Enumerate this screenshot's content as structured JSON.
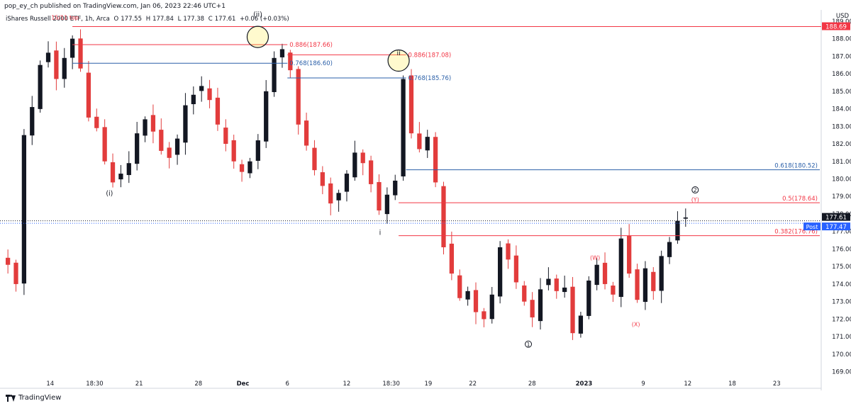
{
  "header": {
    "published": "pop_ey_ch published on TradingView.com, Jan 06, 2023 22:46 UTC+1",
    "symbol": "iShares Russell 2000 ETF, 1h, Arca",
    "o_label": "O",
    "o_value": "177.55",
    "h_label": "H",
    "h_value": "177.84",
    "l_label": "L",
    "l_value": "177.38",
    "c_label": "C",
    "c_value": "177.61",
    "change": "+0.06 (+0.03%)"
  },
  "footer": {
    "logo_text": "TradingView",
    "logo_icon": "tradingview-logo-icon"
  },
  "colors": {
    "up": "#131722",
    "down": "#e23c3c",
    "red_line": "#f23645",
    "blue_line": "#2a5fa8",
    "axis_text": "#131722"
  },
  "price_scale": {
    "currency": "USD",
    "ticks": [
      "189.00",
      "188.00",
      "187.00",
      "186.00",
      "185.00",
      "184.00",
      "183.00",
      "182.00",
      "181.00",
      "180.00",
      "179.00",
      "178.00",
      "177.00",
      "176.00",
      "175.00",
      "174.00",
      "173.00",
      "172.00",
      "171.00",
      "170.00",
      "169.00"
    ],
    "badges": [
      {
        "label": "188.69",
        "value": 188.69,
        "bg": "#f23645",
        "fg": "#ffffff"
      },
      {
        "label": "177.61",
        "value": 177.61,
        "bg": "#131722",
        "fg": "#ffffff"
      },
      {
        "label": "177.47",
        "value": 177.47,
        "bg": "#2962ff",
        "fg": "#ffffff",
        "tag": "Post"
      }
    ]
  },
  "time_scale": {
    "labels": [
      {
        "label": "14",
        "t": 6
      },
      {
        "label": "18:30",
        "t": 12
      },
      {
        "label": "21",
        "t": 18
      },
      {
        "label": "28",
        "t": 26
      },
      {
        "label": "Dec",
        "t": 32
      },
      {
        "label": "6",
        "t": 38
      },
      {
        "label": "12",
        "t": 46
      },
      {
        "label": "18:30",
        "t": 52
      },
      {
        "label": "19",
        "t": 57
      },
      {
        "label": "22",
        "t": 63
      },
      {
        "label": "28",
        "t": 71
      },
      {
        "label": "2023",
        "t": 78
      },
      {
        "label": "9",
        "t": 86
      },
      {
        "label": "12",
        "t": 92
      },
      {
        "label": "18",
        "t": 98
      },
      {
        "label": "23",
        "t": 104
      }
    ]
  },
  "chart_data": {
    "type": "candlestick",
    "title": "iShares Russell 2000 ETF, 1h, Arca",
    "xlabel": "",
    "ylabel": "",
    "ylim": [
      168.5,
      189.6
    ],
    "xlim": [
      0,
      110
    ],
    "grid": false,
    "x_note": "",
    "closes": [
      175.1,
      174.0,
      182.5,
      184.1,
      186.5,
      187.2,
      185.7,
      186.9,
      188.0,
      186.3,
      183.5,
      182.9,
      181.0,
      179.8,
      180.3,
      180.9,
      182.6,
      183.4,
      182.7,
      181.6,
      181.2,
      182.3,
      184.2,
      184.8,
      185.3,
      184.5,
      183.1,
      182.0,
      181.0,
      180.4,
      181.0,
      182.2,
      185.0,
      186.9,
      187.4,
      186.2,
      183.1,
      181.9,
      180.5,
      179.6,
      178.6,
      179.2,
      180.3,
      181.5,
      180.9,
      179.7,
      178.2,
      179.1,
      179.9,
      185.7,
      182.6,
      181.7,
      182.4,
      179.8,
      176.1,
      174.6,
      173.2,
      173.6,
      172.4,
      172.0,
      173.4,
      176.1,
      175.4,
      174.1,
      173.0,
      172.1,
      173.7,
      174.3,
      173.6,
      173.8,
      171.2,
      172.2,
      174.2,
      175.1,
      174.0,
      173.4,
      176.6,
      174.6,
      173.1,
      174.9,
      173.6,
      175.6,
      176.4,
      177.6,
      177.8
    ],
    "annotations": [
      {
        "text": "15/11 top",
        "t": 8.0,
        "price": 189.1,
        "color": "#f23645"
      },
      {
        "text": "(ii)",
        "t": 34.0,
        "price": 189.25,
        "color": "#131722"
      },
      {
        "text": "ii",
        "t": 53.0,
        "price": 187.05,
        "color": "#131722"
      },
      {
        "text": "(i)",
        "t": 14.0,
        "price": 179.05,
        "color": "#131722"
      },
      {
        "text": "i",
        "t": 50.5,
        "price": 176.8,
        "color": "#131722"
      },
      {
        "text": "1",
        "t": 70.5,
        "price": 170.45,
        "color": "#131722",
        "shape": "circle"
      },
      {
        "text": "2",
        "t": 93.0,
        "price": 179.25,
        "color": "#131722",
        "shape": "circle"
      },
      {
        "text": "(Y)",
        "t": 93.0,
        "price": 178.7,
        "color": "#f23645"
      },
      {
        "text": "(W)",
        "t": 79.5,
        "price": 175.4,
        "color": "#f23645"
      },
      {
        "text": "(X)",
        "t": 85.0,
        "price": 171.6,
        "color": "#f23645"
      }
    ],
    "fib_lines": [
      {
        "label": "0.886(187.66)",
        "value": 187.66,
        "t0": 9,
        "t1": 38,
        "color": "#f23645"
      },
      {
        "label": "0.768(186.60)",
        "value": 186.6,
        "t0": 9,
        "t1": 38,
        "color": "#2a5fa8"
      },
      {
        "label": "0.886(187.08)",
        "value": 187.08,
        "t0": 38,
        "t1": 54,
        "color": "#f23645"
      },
      {
        "label": "0.768(185.76)",
        "value": 185.76,
        "t0": 38,
        "t1": 54,
        "color": "#2a5fa8"
      },
      {
        "label": "0.618(180.52)",
        "value": 180.52,
        "t0": 54,
        "t1": 117.5,
        "color": "#2a5fa8"
      },
      {
        "label": "0.5(178.64)",
        "value": 178.64,
        "t0": 53,
        "t1": 117.5,
        "color": "#f23645"
      },
      {
        "label": "0.382(176.76)",
        "value": 176.76,
        "t0": 53,
        "t1": 117.5,
        "color": "#f23645"
      }
    ],
    "horizontal_lines": [
      {
        "value": 188.69,
        "color": "#f23645",
        "t0": 9,
        "t1": 120
      }
    ],
    "circles": [
      {
        "t": 34.0,
        "price": 188.1
      },
      {
        "t": 53.0,
        "price": 186.75
      }
    ]
  }
}
